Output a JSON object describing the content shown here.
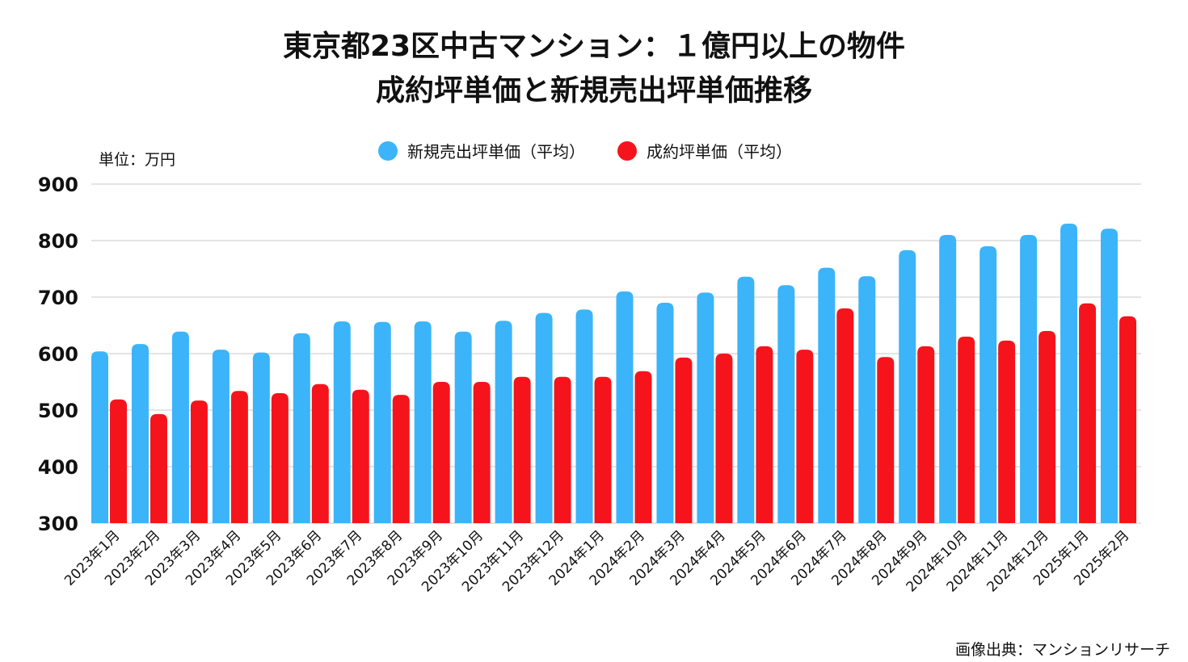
{
  "chart_data": {
    "type": "bar",
    "title": "東京都23区中古マンション：１億円以上の物件",
    "subtitle": "成約坪単価と新規売出坪単価推移",
    "unit_label": "単位：万円",
    "xlabel": "",
    "ylabel": "",
    "ylim": [
      300,
      900
    ],
    "yticks": [
      300,
      400,
      500,
      600,
      700,
      800,
      900
    ],
    "grid": true,
    "legend_position": "top-center",
    "categories": [
      "2023年1月",
      "2023年2月",
      "2023年3月",
      "2023年4月",
      "2023年5月",
      "2023年6月",
      "2023年7月",
      "2023年8月",
      "2023年9月",
      "2023年10月",
      "2023年11月",
      "2023年12月",
      "2024年1月",
      "2024年2月",
      "2024年3月",
      "2024年4月",
      "2024年5月",
      "2024年6月",
      "2024年7月",
      "2024年8月",
      "2024年9月",
      "2024年10月",
      "2024年11月",
      "2024年12月",
      "2025年1月",
      "2025年2月"
    ],
    "series": [
      {
        "name": "新規売出坪単価（平均）",
        "color": "#3bb4f9",
        "values": [
          604,
          617,
          639,
          607,
          602,
          636,
          657,
          656,
          657,
          639,
          658,
          672,
          678,
          710,
          690,
          708,
          736,
          721,
          752,
          737,
          783,
          810,
          790,
          810,
          830,
          821
        ]
      },
      {
        "name": "成約坪単価（平均）",
        "color": "#f5141c",
        "values": [
          519,
          493,
          517,
          534,
          530,
          546,
          536,
          527,
          550,
          550,
          559,
          559,
          559,
          569,
          593,
          600,
          613,
          607,
          680,
          594,
          613,
          630,
          623,
          640,
          689,
          666
        ]
      }
    ],
    "source": "画像出典：マンションリサーチ"
  }
}
